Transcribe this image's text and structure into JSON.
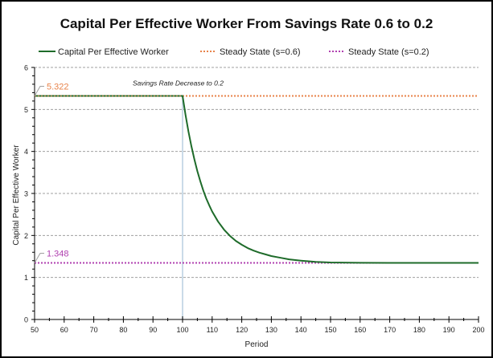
{
  "chart_data": {
    "type": "line",
    "title": "Capital Per Effective Worker From Savings Rate 0.6 to 0.2",
    "xlabel": "Period",
    "ylabel": "Capital Per Effective Worker",
    "xlim": [
      50,
      200
    ],
    "ylim": [
      0,
      6
    ],
    "xticks": [
      50,
      60,
      70,
      80,
      90,
      100,
      110,
      120,
      130,
      140,
      150,
      160,
      170,
      180,
      190,
      200
    ],
    "yticks": [
      0,
      1,
      2,
      3,
      4,
      5,
      6
    ],
    "grid": "horizontal dashed",
    "legend": {
      "position": "top",
      "entries": [
        {
          "label": "Capital Per Effective Worker",
          "style": "solid",
          "color": "#1e6b2a"
        },
        {
          "label": "Steady State (s=0.6)",
          "style": "dotted",
          "color": "#e8834a"
        },
        {
          "label": "Steady State (s=0.2)",
          "style": "dotted",
          "color": "#b040b0"
        }
      ]
    },
    "series": [
      {
        "name": "Capital Per Effective Worker",
        "color": "#1e6b2a",
        "x": [
          50,
          60,
          70,
          80,
          90,
          100,
          101,
          102,
          103,
          104,
          105,
          106,
          107,
          108,
          109,
          110,
          112,
          114,
          116,
          118,
          120,
          122,
          124,
          126,
          128,
          130,
          133,
          136,
          140,
          145,
          150,
          160,
          170,
          180,
          190,
          200
        ],
        "y": [
          5.322,
          5.322,
          5.322,
          5.322,
          5.322,
          5.322,
          4.87,
          4.47,
          4.12,
          3.81,
          3.53,
          3.29,
          3.07,
          2.88,
          2.72,
          2.57,
          2.33,
          2.14,
          1.99,
          1.87,
          1.78,
          1.7,
          1.64,
          1.59,
          1.55,
          1.51,
          1.47,
          1.43,
          1.4,
          1.37,
          1.356,
          1.349,
          1.348,
          1.348,
          1.348,
          1.348
        ]
      },
      {
        "name": "Steady State (s=0.6)",
        "color": "#e8834a",
        "value": 5.322
      },
      {
        "name": "Steady State (s=0.2)",
        "color": "#b040b0",
        "value": 1.348
      }
    ],
    "annotations": [
      {
        "text": "5.322",
        "x": 50,
        "y": 5.322,
        "color": "#e8834a"
      },
      {
        "text": "1.348",
        "x": 50,
        "y": 1.348,
        "color": "#b040b0"
      },
      {
        "text": "Savings Rate Decrease to 0.2",
        "x": 100,
        "y": 5.322,
        "style": "italic"
      }
    ],
    "vline": {
      "x": 100,
      "color": "#b8cfe0"
    }
  }
}
